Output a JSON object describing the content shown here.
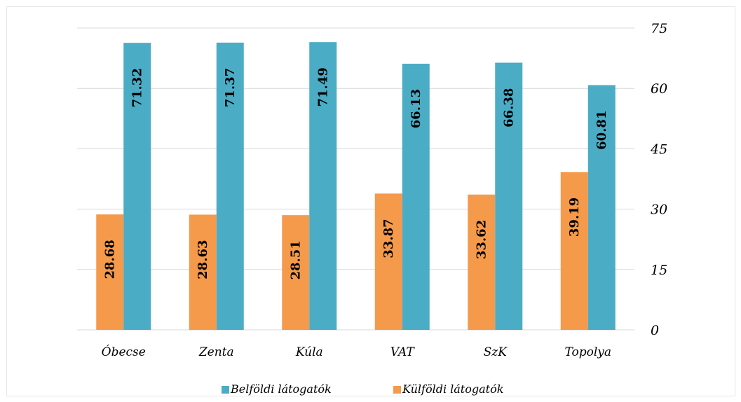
{
  "chart_data": {
    "type": "bar",
    "categories": [
      "Óbecse",
      "Zenta",
      "Kúla",
      "VAT",
      "SzK",
      "Topolya"
    ],
    "series": [
      {
        "name": "Külföldi látogatók",
        "color": "#f59a4b",
        "values": [
          28.68,
          28.63,
          28.51,
          33.87,
          33.62,
          39.19
        ]
      },
      {
        "name": "Belföldi látogatók",
        "color": "#4bacc6",
        "values": [
          71.32,
          71.37,
          71.49,
          66.13,
          66.38,
          60.81
        ]
      }
    ],
    "y_ticks": [
      "0",
      "15",
      "30",
      "45",
      "60",
      "75"
    ],
    "ylim": [
      0,
      75
    ],
    "y_axis_side": "right",
    "grid": true,
    "data_labels": "rotated inside bars",
    "legend_position": "bottom",
    "legend_order": [
      "Belföldi látogatók",
      "Külföldi látogatók"
    ]
  }
}
